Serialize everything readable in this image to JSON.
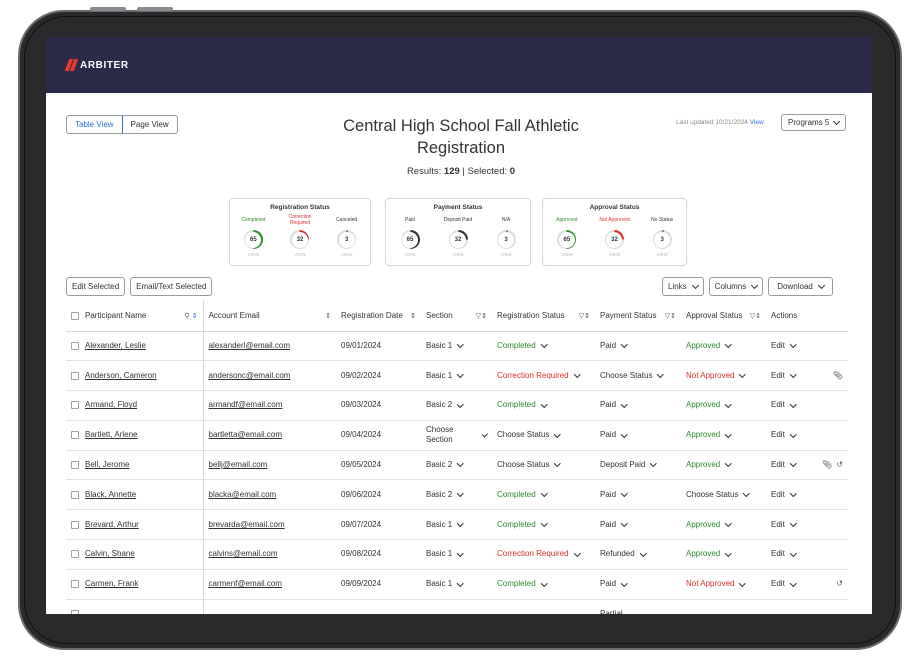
{
  "app": {
    "brand": "ARBITER",
    "brand_color": "#2c2a4a",
    "accent": "#2f6fd6"
  },
  "view_toggle": {
    "table_view": "Table View",
    "page_view": "Page View"
  },
  "page": {
    "title": "Central High School Fall Athletic Registration",
    "results_label": "Results:",
    "results_count": "129",
    "selected_label": "| Selected:",
    "selected_count": "0",
    "last_updated": "Last updated 10/21/2024",
    "last_updated_link": "View",
    "programs_label": "Programs 5"
  },
  "cards": [
    {
      "title": "Registration Status",
      "stats": [
        {
          "label": "Completed",
          "value": "65",
          "color": "#2e8b2e",
          "fraction": 0.5
        },
        {
          "label": "Correction Required",
          "value": "32",
          "color": "#d92f2f",
          "fraction": 0.25
        },
        {
          "label": "Canceled",
          "value": "3",
          "color": "#333333",
          "fraction": 0.02
        }
      ]
    },
    {
      "title": "Payment Status",
      "stats": [
        {
          "label": "Paid",
          "value": "65",
          "color": "#333333",
          "fraction": 0.5
        },
        {
          "label": "Deposit Paid",
          "value": "32",
          "color": "#333333",
          "fraction": 0.25
        },
        {
          "label": "N/A",
          "value": "3",
          "color": "#333333",
          "fraction": 0.02
        }
      ]
    },
    {
      "title": "Approval Status",
      "stats": [
        {
          "label": "Approved",
          "value": "65",
          "color": "#2e8b2e",
          "fraction": 0.5
        },
        {
          "label": "Not Approved",
          "value": "32",
          "color": "#d92f2f",
          "fraction": 0.25
        },
        {
          "label": "No Status",
          "value": "3",
          "color": "#333333",
          "fraction": 0.02
        }
      ]
    }
  ],
  "stat_view_label": "VIEW",
  "toolbar": {
    "edit_selected": "Edit Selected",
    "email_text_selected": "Email/Text Selected",
    "links": "Links",
    "columns": "Columns",
    "download": "Download"
  },
  "table": {
    "headers": [
      "Participant Name",
      "Account Email",
      "Registration Date",
      "Section",
      "Registration Status",
      "Payment Status",
      "Approval Status",
      "Actions"
    ],
    "rows": [
      {
        "name": "Alexander, Leslie",
        "email": "alexanderl@email.com",
        "date": "09/01/2024",
        "section": "Basic 1",
        "reg": "Completed",
        "reg_color": "green",
        "pay": "Paid",
        "appr": "Approved",
        "appr_color": "green",
        "action": "Edit",
        "icons": ""
      },
      {
        "name": "Anderson, Cameron",
        "email": "andersonc@email.com",
        "date": "09/02/2024",
        "section": "Basic 1",
        "reg": "Correction Required",
        "reg_color": "red",
        "pay": "Choose Status",
        "appr": "Not Approved",
        "appr_color": "red",
        "action": "Edit",
        "icons": "paperclip"
      },
      {
        "name": "Armand, Floyd",
        "email": "armandf@email.com",
        "date": "09/03/2024",
        "section": "Basic 2",
        "reg": "Completed",
        "reg_color": "green",
        "pay": "Paid",
        "appr": "Approved",
        "appr_color": "green",
        "action": "Edit",
        "icons": ""
      },
      {
        "name": "Bartlett, Arlene",
        "email": "bartletta@email.com",
        "date": "09/04/2024",
        "section": "Choose Section",
        "reg": "Choose Status",
        "reg_color": "",
        "pay": "Paid",
        "appr": "Approved",
        "appr_color": "green",
        "action": "Edit",
        "icons": ""
      },
      {
        "name": "Bell, Jerome",
        "email": "bellj@email.com",
        "date": "09/05/2024",
        "section": "Basic 2",
        "reg": "Choose Status",
        "reg_color": "",
        "pay": "Deposit Paid",
        "appr": "Approved",
        "appr_color": "green",
        "action": "Edit",
        "icons": "paperclip history"
      },
      {
        "name": "Black, Annette",
        "email": "blacka@email.com",
        "date": "09/06/2024",
        "section": "Basic 2",
        "reg": "Completed",
        "reg_color": "green",
        "pay": "Paid",
        "appr": "Choose Status",
        "appr_color": "",
        "action": "Edit",
        "icons": ""
      },
      {
        "name": "Brevard, Arthur",
        "email": "brevarda@email.com",
        "date": "09/07/2024",
        "section": "Basic 1",
        "reg": "Completed",
        "reg_color": "green",
        "pay": "Paid",
        "appr": "Approved",
        "appr_color": "green",
        "action": "Edit",
        "icons": ""
      },
      {
        "name": "Calvin, Shane",
        "email": "calvins@email.com",
        "date": "09/08/2024",
        "section": "Basic 1",
        "reg": "Correction Required",
        "reg_color": "red",
        "pay": "Refunded",
        "appr": "Approved",
        "appr_color": "green",
        "action": "Edit",
        "icons": ""
      },
      {
        "name": "Carmen, Frank",
        "email": "carmenf@email.com",
        "date": "09/09/2024",
        "section": "Basic 1",
        "reg": "Completed",
        "reg_color": "green",
        "pay": "Paid",
        "appr": "Not Approved",
        "appr_color": "red",
        "action": "Edit",
        "icons": "history"
      },
      {
        "name": "",
        "email": "",
        "date": "",
        "section": "",
        "reg": "",
        "reg_color": "",
        "pay": "Partial",
        "appr": "",
        "appr_color": "",
        "action": "",
        "icons": ""
      }
    ]
  }
}
